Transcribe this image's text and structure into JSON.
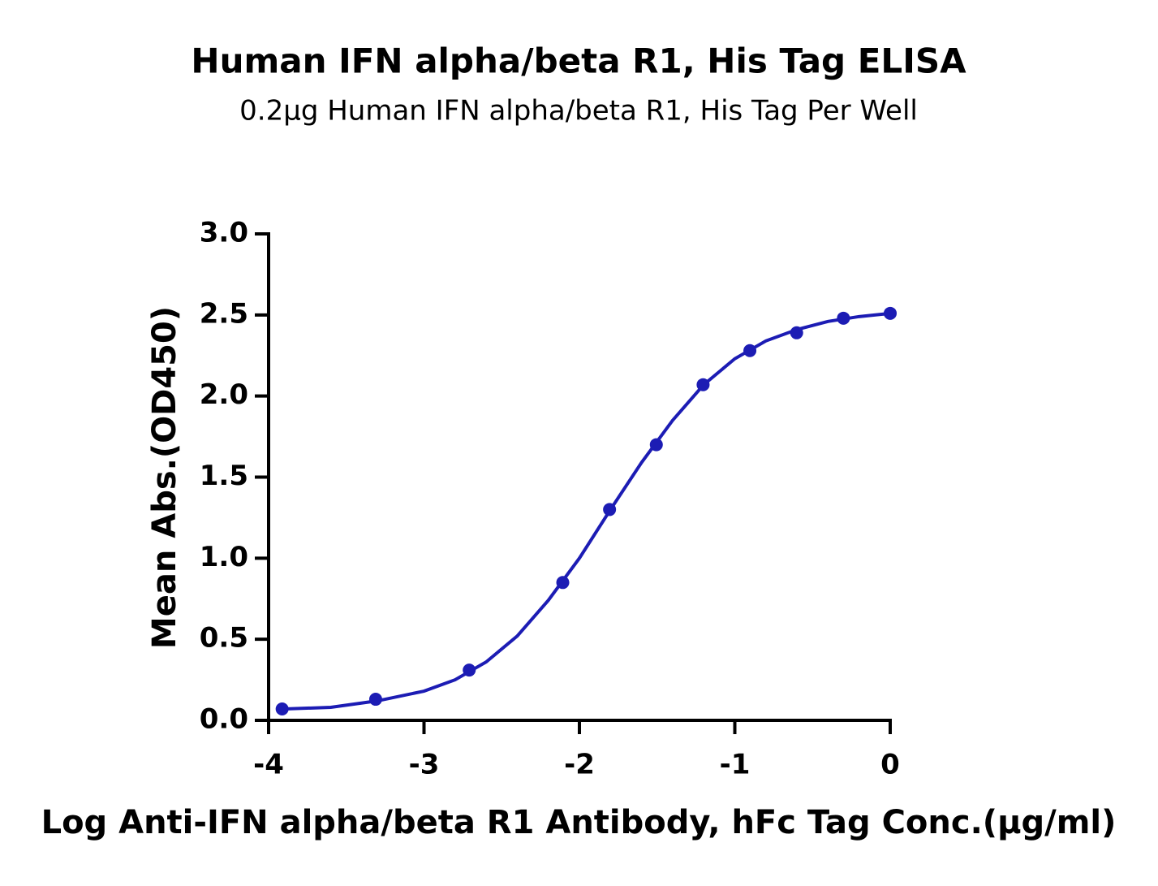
{
  "chart_data": {
    "type": "scatter",
    "title": "Human IFN alpha/beta R1, His Tag ELISA",
    "subtitle": "0.2μg Human IFN alpha/beta R1, His Tag Per Well",
    "x_label": "Log Anti-IFN alpha/beta R1 Antibody, hFc Tag Conc.(μg/ml)",
    "y_label": "Mean Abs.(OD450)",
    "xlim": [
      -4,
      0
    ],
    "xticks": [
      -4,
      -3,
      -2,
      -1,
      0
    ],
    "ylim": [
      0,
      3
    ],
    "yticks": [
      {
        "value": 0,
        "label": "0.0"
      },
      {
        "value": 0.5,
        "label": "0.5"
      },
      {
        "value": 1,
        "label": "1.0"
      },
      {
        "value": 1.5,
        "label": "1.5"
      },
      {
        "value": 2,
        "label": "2.0"
      },
      {
        "value": 2.5,
        "label": "2.5"
      },
      {
        "value": 3,
        "label": "3.0"
      }
    ],
    "color": "#1c1cb4",
    "x": [
      -3.913,
      -3.311,
      -2.709,
      -2.107,
      -1.806,
      -1.505,
      -1.204,
      -0.903,
      -0.602,
      -0.301,
      0
    ],
    "values": [
      0.07,
      0.13,
      0.31,
      0.85,
      1.3,
      1.7,
      2.07,
      2.28,
      2.39,
      2.48,
      2.51
    ],
    "curve": {
      "x": [
        -3.9,
        -3.6,
        -3.3,
        -3.0,
        -2.8,
        -2.6,
        -2.4,
        -2.2,
        -2.0,
        -1.8,
        -1.6,
        -1.4,
        -1.2,
        -1.0,
        -0.8,
        -0.6,
        -0.4,
        -0.2,
        0
      ],
      "values": [
        0.07,
        0.08,
        0.12,
        0.18,
        0.25,
        0.36,
        0.52,
        0.74,
        1.0,
        1.3,
        1.59,
        1.85,
        2.07,
        2.23,
        2.34,
        2.41,
        2.46,
        2.49,
        2.51
      ]
    }
  }
}
